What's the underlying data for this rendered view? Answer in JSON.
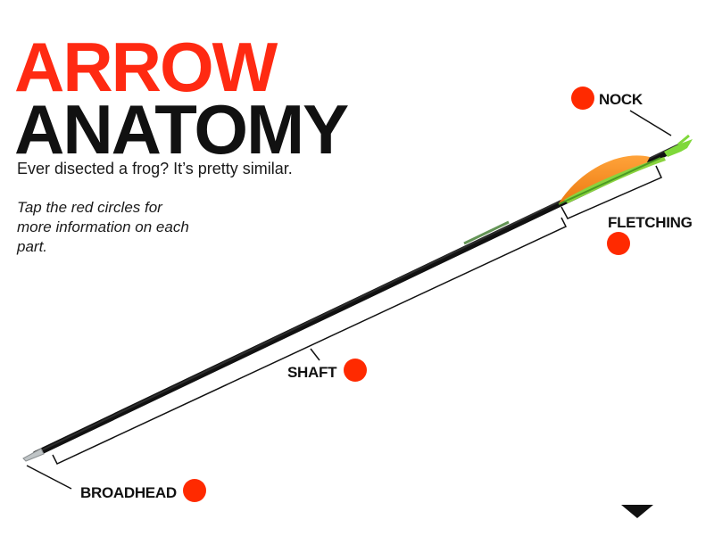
{
  "header": {
    "title_line1": "ARROW",
    "title_line2": "ANATOMY",
    "subtitle": "Ever disected a frog? It’s pretty similar.",
    "instructions": "Tap the red circles for more information on each part."
  },
  "parts": [
    {
      "id": "nock",
      "label": "NOCK"
    },
    {
      "id": "fletching",
      "label": "FLETCHING"
    },
    {
      "id": "shaft",
      "label": "SHAFT"
    },
    {
      "id": "broadhead",
      "label": "BROADHEAD"
    }
  ],
  "colors": {
    "accent": "#ff2a12",
    "hotspot": "#ff2a00",
    "shaft": "#1c1c1c",
    "vane_orange": "#f58a1f",
    "vane_green": "#7fd23a"
  },
  "icons": {
    "hotspot": "red-circle-icon",
    "next": "down-triangle-icon"
  }
}
